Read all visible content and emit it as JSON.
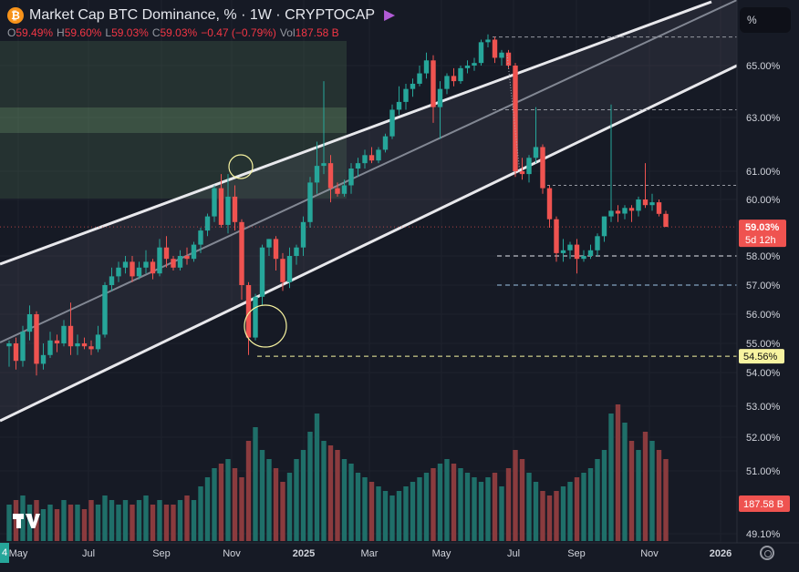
{
  "header": {
    "title": "Market Cap BTC Dominance, % · 1W · CRYPTOCAP",
    "ohlc": [
      {
        "k": "O",
        "v": "59.49%"
      },
      {
        "k": "H",
        "v": "59.60%"
      },
      {
        "k": "L",
        "v": "59.03%"
      },
      {
        "k": "C",
        "v": "59.03%"
      },
      {
        "k": "",
        "v": "−0.47 (−0.79%)"
      },
      {
        "k": "Vol",
        "v": "187.58 B"
      }
    ]
  },
  "scale_button": "%",
  "corner_label": "4",
  "colors": {
    "bg": "#161a25",
    "up": "#26a69a",
    "down": "#ef5350",
    "up_vol": "#1f6f69",
    "down_vol": "#8a3b3e",
    "highlight": "#f7f3a0"
  },
  "chart_data": {
    "type": "candlestick",
    "x_ticks": [
      "May",
      "Jul",
      "Sep",
      "Nov",
      "2025",
      "Mar",
      "May",
      "Jul",
      "Sep",
      "Nov",
      "2026"
    ],
    "y_ticks": [
      "65.00%",
      "63.00%",
      "61.00%",
      "60.00%",
      "58.00%",
      "57.00%",
      "56.00%",
      "55.00%",
      "54.00%",
      "53.00%",
      "52.00%",
      "51.00%",
      "49.10%"
    ],
    "y_scale": "log",
    "price_labels": [
      {
        "text": "59.03%",
        "value": 59.03,
        "style": "down"
      },
      {
        "text": "5d 12h",
        "value": 59.03,
        "style": "down-sub"
      },
      {
        "text": "54.56%",
        "value": 54.56,
        "style": "highlight"
      },
      {
        "text": "187.58 B",
        "value": 187.58,
        "style": "volume"
      }
    ],
    "horizontal_levels": [
      66.1,
      63.3,
      60.5,
      58.0,
      57.0,
      54.56
    ],
    "series": {
      "ohlc": [
        [
          54.9,
          55.1,
          54.2,
          55.0
        ],
        [
          55.0,
          55.2,
          54.1,
          54.4
        ],
        [
          54.4,
          55.6,
          54.2,
          55.4
        ],
        [
          55.4,
          56.3,
          55.1,
          56.0
        ],
        [
          56.0,
          56.1,
          53.9,
          54.3
        ],
        [
          54.3,
          55.0,
          54.1,
          54.6
        ],
        [
          54.6,
          55.4,
          54.5,
          55.1
        ],
        [
          55.1,
          55.3,
          54.7,
          55.0
        ],
        [
          55.0,
          55.8,
          54.9,
          55.6
        ],
        [
          55.6,
          56.4,
          54.6,
          54.9
        ],
        [
          54.9,
          55.3,
          54.6,
          55.0
        ],
        [
          55.0,
          55.2,
          54.8,
          54.9
        ],
        [
          54.9,
          55.1,
          54.6,
          54.8
        ],
        [
          54.8,
          55.6,
          54.7,
          55.3
        ],
        [
          55.3,
          57.1,
          55.2,
          57.0
        ],
        [
          57.0,
          57.6,
          56.8,
          57.3
        ],
        [
          57.3,
          57.8,
          57.1,
          57.6
        ],
        [
          57.6,
          58.0,
          57.4,
          57.8
        ],
        [
          57.8,
          58.0,
          57.1,
          57.3
        ],
        [
          57.3,
          57.8,
          57.2,
          57.6
        ],
        [
          57.6,
          58.2,
          57.4,
          57.8
        ],
        [
          57.8,
          57.9,
          57.2,
          57.4
        ],
        [
          57.4,
          58.6,
          57.3,
          58.3
        ],
        [
          58.3,
          58.7,
          57.6,
          57.9
        ],
        [
          57.9,
          58.0,
          57.5,
          57.6
        ],
        [
          57.6,
          58.2,
          57.5,
          58.0
        ],
        [
          58.0,
          58.3,
          57.7,
          57.9
        ],
        [
          57.9,
          58.5,
          57.8,
          58.4
        ],
        [
          58.4,
          59.0,
          58.1,
          58.9
        ],
        [
          58.9,
          59.5,
          58.7,
          59.4
        ],
        [
          59.4,
          60.5,
          59.2,
          60.4
        ],
        [
          60.4,
          60.9,
          59.0,
          59.1
        ],
        [
          59.1,
          60.9,
          58.8,
          60.1
        ],
        [
          60.1,
          60.5,
          58.9,
          59.2
        ],
        [
          59.2,
          59.3,
          56.5,
          57.0
        ],
        [
          57.0,
          57.1,
          54.6,
          55.2
        ],
        [
          55.2,
          56.7,
          55.1,
          56.6
        ],
        [
          56.6,
          58.4,
          56.3,
          58.3
        ],
        [
          58.3,
          58.6,
          58.0,
          58.6
        ],
        [
          58.6,
          58.7,
          57.5,
          57.9
        ],
        [
          57.9,
          58.1,
          56.8,
          57.1
        ],
        [
          57.1,
          58.3,
          56.9,
          58.0
        ],
        [
          58.0,
          58.4,
          57.7,
          58.3
        ],
        [
          58.3,
          59.4,
          58.0,
          59.2
        ],
        [
          59.2,
          60.8,
          59.0,
          60.6
        ],
        [
          60.6,
          62.1,
          60.2,
          61.2
        ],
        [
          61.2,
          64.4,
          60.9,
          61.3
        ],
        [
          61.3,
          61.6,
          59.9,
          60.4
        ],
        [
          60.4,
          60.6,
          60.1,
          60.2
        ],
        [
          60.2,
          60.7,
          60.1,
          60.5
        ],
        [
          60.5,
          61.3,
          60.2,
          61.1
        ],
        [
          61.1,
          61.5,
          60.8,
          61.3
        ],
        [
          61.3,
          61.8,
          61.1,
          61.6
        ],
        [
          61.6,
          61.9,
          61.3,
          61.4
        ],
        [
          61.4,
          61.9,
          61.3,
          61.8
        ],
        [
          61.8,
          62.4,
          61.7,
          62.3
        ],
        [
          62.3,
          63.5,
          62.2,
          63.3
        ],
        [
          63.3,
          64.2,
          63.1,
          63.6
        ],
        [
          63.6,
          64.3,
          63.3,
          64.1
        ],
        [
          64.1,
          64.5,
          63.8,
          64.3
        ],
        [
          64.3,
          65.0,
          64.2,
          64.7
        ],
        [
          64.7,
          65.5,
          64.5,
          65.2
        ],
        [
          65.2,
          65.4,
          62.8,
          63.4
        ],
        [
          63.4,
          64.4,
          62.2,
          64.1
        ],
        [
          64.1,
          64.7,
          63.9,
          64.6
        ],
        [
          64.6,
          64.9,
          64.2,
          64.4
        ],
        [
          64.4,
          65.0,
          64.3,
          64.9
        ],
        [
          64.9,
          65.2,
          64.7,
          65.0
        ],
        [
          65.0,
          65.3,
          64.8,
          65.1
        ],
        [
          65.1,
          66.0,
          65.0,
          65.9
        ],
        [
          65.9,
          66.2,
          65.7,
          66.0
        ],
        [
          66.0,
          66.1,
          65.1,
          65.3
        ],
        [
          65.3,
          65.6,
          65.0,
          65.5
        ],
        [
          65.5,
          65.6,
          64.9,
          65.0
        ],
        [
          65.0,
          65.1,
          60.8,
          61.0
        ],
        [
          61.0,
          61.5,
          60.7,
          60.9
        ],
        [
          60.9,
          61.6,
          60.6,
          61.5
        ],
        [
          61.5,
          63.4,
          61.3,
          61.9
        ],
        [
          61.9,
          62.0,
          60.2,
          60.4
        ],
        [
          60.4,
          60.5,
          59.0,
          59.3
        ],
        [
          59.3,
          59.4,
          57.8,
          58.1
        ],
        [
          58.1,
          58.6,
          57.8,
          58.2
        ],
        [
          58.2,
          58.5,
          57.9,
          58.4
        ],
        [
          58.4,
          58.6,
          57.4,
          57.9
        ],
        [
          57.9,
          58.2,
          57.8,
          58.0
        ],
        [
          58.0,
          58.4,
          57.9,
          58.2
        ],
        [
          58.2,
          58.8,
          58.0,
          58.7
        ],
        [
          58.7,
          59.4,
          58.5,
          59.4
        ],
        [
          59.4,
          63.5,
          59.2,
          59.6
        ],
        [
          59.6,
          59.8,
          59.2,
          59.5
        ],
        [
          59.5,
          59.8,
          59.3,
          59.7
        ],
        [
          59.7,
          59.8,
          59.2,
          59.6
        ],
        [
          59.6,
          60.1,
          59.4,
          60.0
        ],
        [
          60.0,
          61.3,
          59.7,
          59.8
        ],
        [
          59.8,
          60.2,
          59.6,
          59.9
        ],
        [
          59.9,
          60.0,
          59.4,
          59.49
        ],
        [
          59.49,
          59.6,
          59.03,
          59.03
        ]
      ],
      "volume": [
        8,
        9,
        10,
        8,
        9,
        7,
        8,
        7,
        9,
        8,
        8,
        7,
        9,
        8,
        10,
        9,
        8,
        9,
        8,
        9,
        10,
        8,
        9,
        8,
        8,
        9,
        10,
        9,
        12,
        14,
        16,
        17,
        18,
        16,
        14,
        22,
        25,
        20,
        18,
        16,
        13,
        15,
        18,
        20,
        24,
        28,
        22,
        21,
        20,
        18,
        17,
        15,
        14,
        13,
        12,
        11,
        10,
        11,
        12,
        13,
        14,
        15,
        16,
        17,
        18,
        17,
        16,
        15,
        14,
        13,
        14,
        15,
        12,
        16,
        20,
        18,
        15,
        13,
        11,
        10,
        11,
        12,
        13,
        14,
        15,
        16,
        18,
        20,
        28,
        30,
        26,
        22,
        20,
        24,
        22,
        20,
        18
      ]
    }
  }
}
